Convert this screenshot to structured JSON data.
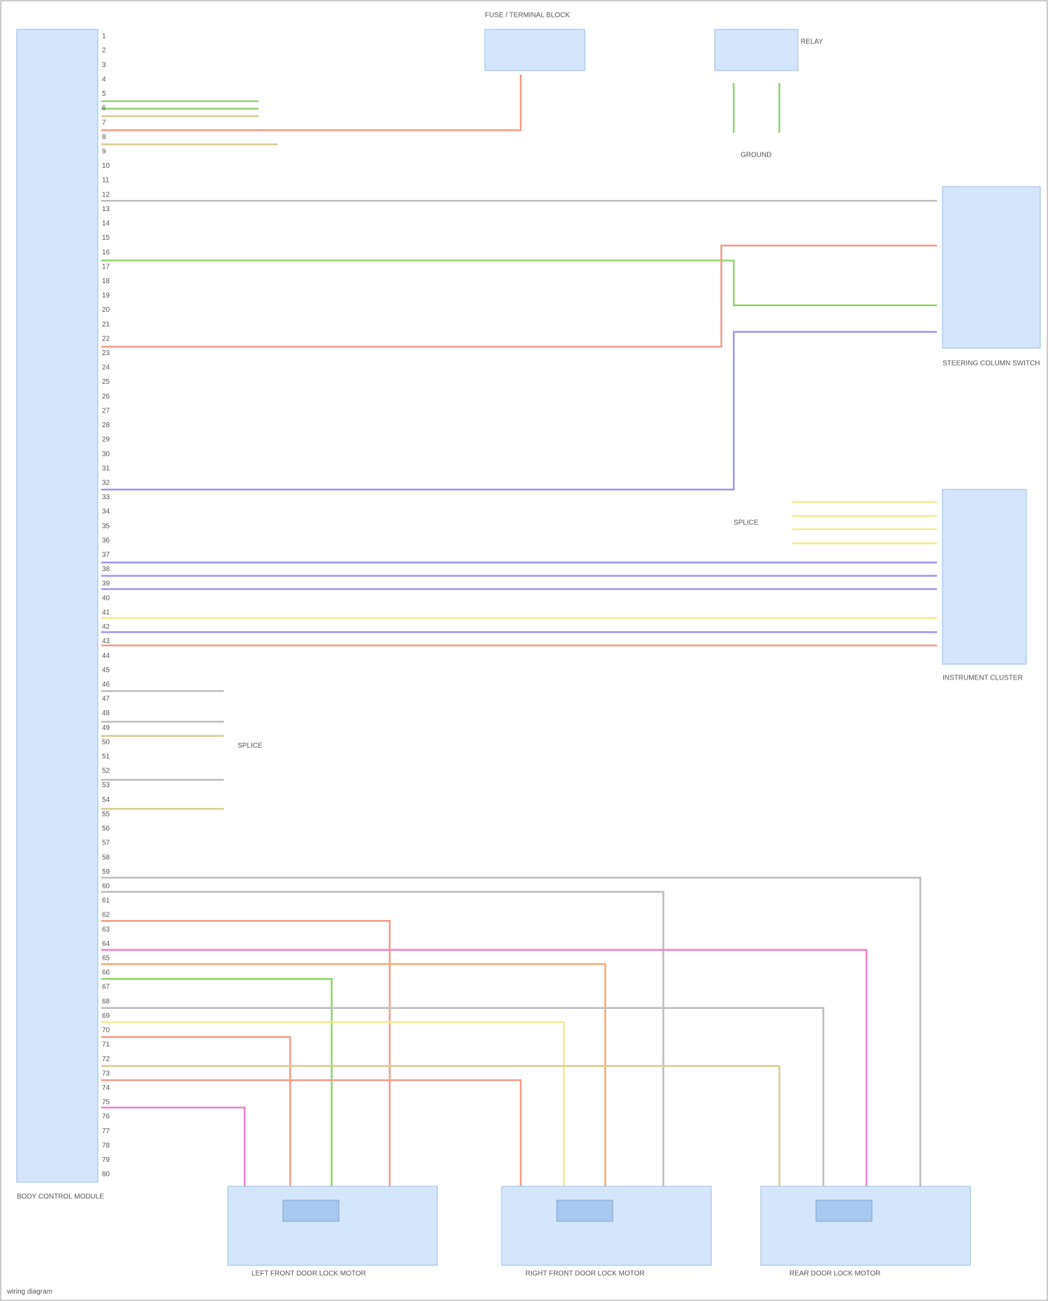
{
  "module": {
    "label": "BODY CONTROL MODULE",
    "pins": [
      "1",
      "2",
      "3",
      "4",
      "5",
      "6",
      "7",
      "8",
      "9",
      "10",
      "11",
      "12",
      "13",
      "14",
      "15",
      "16",
      "17",
      "18",
      "19",
      "20",
      "21",
      "22",
      "23",
      "24",
      "25",
      "26",
      "27",
      "28",
      "29",
      "30",
      "31",
      "32",
      "33",
      "34",
      "35",
      "36",
      "37",
      "38",
      "39",
      "40",
      "41",
      "42",
      "43",
      "44",
      "45",
      "46",
      "47",
      "48",
      "49",
      "50",
      "51",
      "52",
      "53",
      "54",
      "55",
      "56",
      "57",
      "58",
      "59",
      "60",
      "61",
      "62",
      "63",
      "64",
      "65",
      "66",
      "67",
      "68",
      "69",
      "70",
      "71",
      "72",
      "73",
      "74",
      "75",
      "76",
      "77",
      "78",
      "79",
      "80"
    ]
  },
  "components": [
    {
      "label": "FUSE / TERMINAL BLOCK"
    },
    {
      "label": "RELAY"
    },
    {
      "label": "GROUND"
    },
    {
      "label": "STEERING COLUMN SWITCH"
    },
    {
      "label": "INSTRUMENT CLUSTER"
    },
    {
      "label": "SPLICE"
    },
    {
      "label": "LEFT FRONT DOOR LOCK MOTOR"
    },
    {
      "label": "RIGHT FRONT DOOR LOCK MOTOR"
    },
    {
      "label": "REAR DOOR LOCK MOTOR"
    }
  ],
  "footer": "wiring diagram"
}
